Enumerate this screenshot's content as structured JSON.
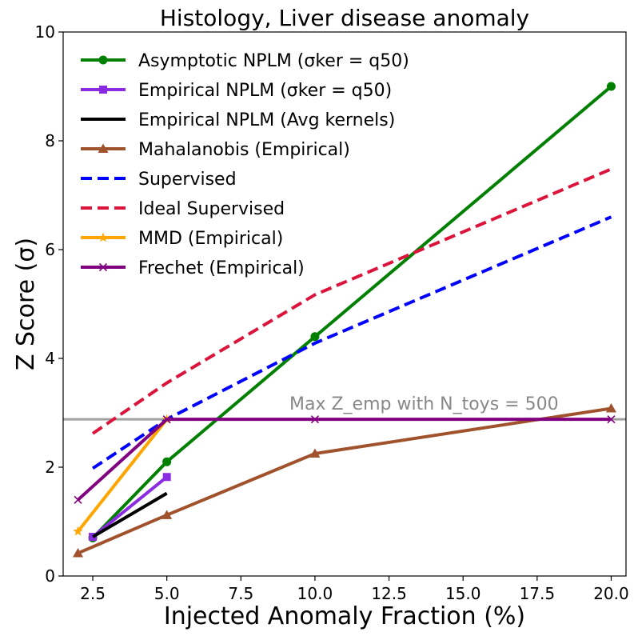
{
  "chart_data": {
    "type": "line",
    "title": "Histology, Liver disease anomaly",
    "xlabel": "Injected Anomaly Fraction (%)",
    "ylabel": "Z Score (σ)",
    "xlim": [
      1.5,
      20.5
    ],
    "ylim": [
      0,
      10
    ],
    "xticks": [
      "2.5",
      "5.0",
      "7.5",
      "10.0",
      "12.5",
      "15.0",
      "17.5",
      "20.0"
    ],
    "yticks": [
      "0",
      "2",
      "4",
      "6",
      "8",
      "10"
    ],
    "legend_position": "upper-left",
    "series": [
      {
        "name": "Asymptotic NPLM (σker = q50)",
        "color": "#008000",
        "dash": "solid",
        "marker": "circle",
        "x": [
          2.5,
          5,
          10,
          20
        ],
        "y": [
          0.7,
          2.1,
          4.4,
          9.0
        ]
      },
      {
        "name": "Empirical NPLM (σker = q50)",
        "color": "#8a2be2",
        "dash": "solid",
        "marker": "square",
        "x": [
          2.5,
          5
        ],
        "y": [
          0.72,
          1.82
        ]
      },
      {
        "name": "Empirical NPLM (Avg kernels)",
        "color": "#000000",
        "dash": "solid",
        "marker": "none",
        "x": [
          2.5,
          5
        ],
        "y": [
          0.72,
          1.52
        ]
      },
      {
        "name": "Mahalanobis (Empirical)",
        "color": "#a0522d",
        "dash": "solid",
        "marker": "triangle",
        "x": [
          2,
          5,
          10,
          20
        ],
        "y": [
          0.42,
          1.12,
          2.25,
          3.08
        ]
      },
      {
        "name": "Supervised",
        "color": "#0000ff",
        "dash": "dashed",
        "marker": "none",
        "x": [
          2.5,
          5,
          10,
          20
        ],
        "y": [
          1.98,
          2.88,
          4.28,
          6.6
        ]
      },
      {
        "name": "Ideal Supervised",
        "color": "#dc143c",
        "dash": "dashed",
        "marker": "none",
        "x": [
          2.5,
          5,
          10,
          20
        ],
        "y": [
          2.62,
          3.55,
          5.17,
          7.48
        ]
      },
      {
        "name": "MMD (Empirical)",
        "color": "#ffa500",
        "dash": "solid",
        "marker": "star",
        "x": [
          2,
          5
        ],
        "y": [
          0.82,
          2.88
        ]
      },
      {
        "name": "Frechet (Empirical)",
        "color": "#800080",
        "dash": "solid",
        "marker": "x",
        "x": [
          2,
          5,
          10,
          20
        ],
        "y": [
          1.4,
          2.88,
          2.88,
          2.88
        ]
      }
    ],
    "reference_line": {
      "y": 2.88,
      "color": "#a0a0a0",
      "label": "Max Z_emp with N_toys = 500"
    }
  }
}
